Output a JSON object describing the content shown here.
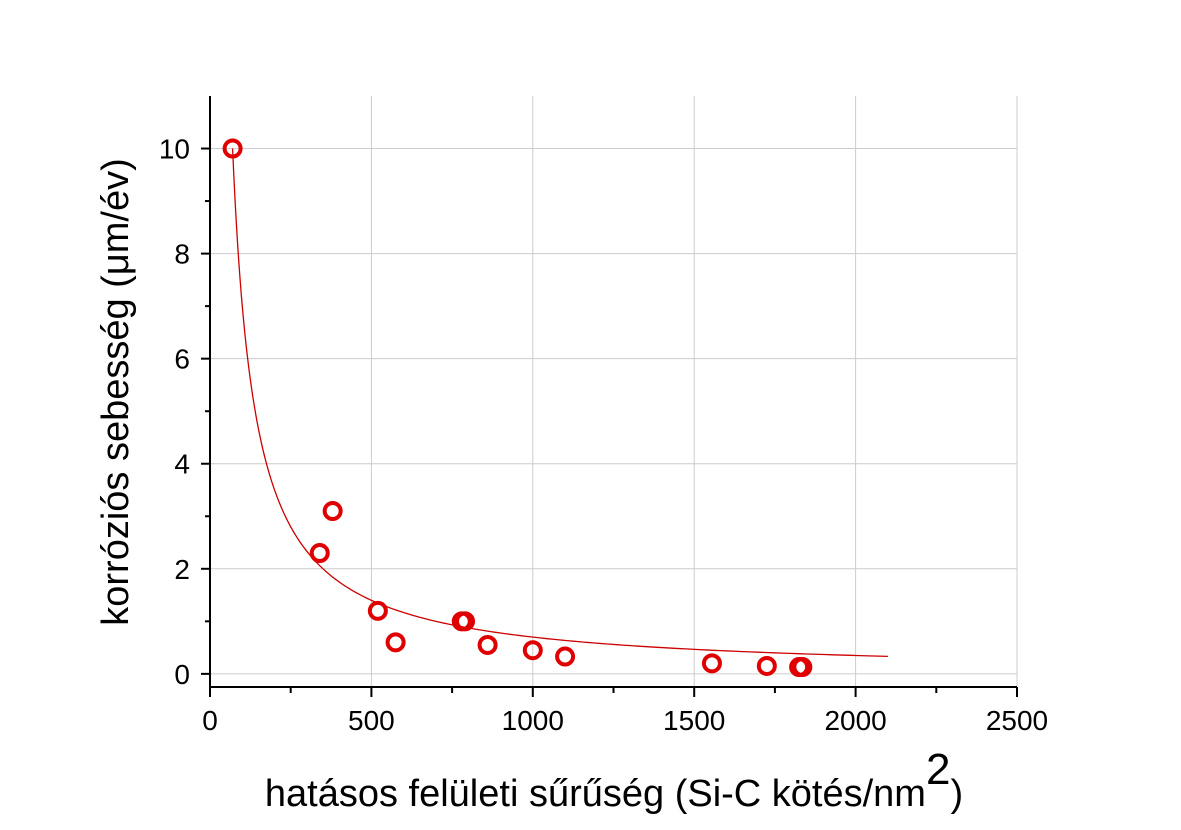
{
  "chart_data": {
    "type": "scatter",
    "xlabel": "hatásos felületi sűrűség (Si-C kötés/nm",
    "xlabel_superscript": "2",
    "xlabel_suffix": ")",
    "ylabel": "korróziós sebesség (μm/év)",
    "xlim": [
      0,
      2500
    ],
    "ylim": [
      -0.25,
      11
    ],
    "x_ticks": [
      0,
      500,
      1000,
      1500,
      2000,
      2500
    ],
    "y_ticks": [
      0,
      2,
      4,
      6,
      8,
      10
    ],
    "grid": true,
    "series": [
      {
        "kind": "points",
        "color": "#e00000",
        "marker": "open-circle",
        "points": [
          {
            "x": 70,
            "y": 10.0
          },
          {
            "x": 340,
            "y": 2.3
          },
          {
            "x": 380,
            "y": 3.1
          },
          {
            "x": 520,
            "y": 1.2
          },
          {
            "x": 575,
            "y": 0.6
          },
          {
            "x": 780,
            "y": 1.0
          },
          {
            "x": 790,
            "y": 1.0
          },
          {
            "x": 860,
            "y": 0.55
          },
          {
            "x": 1000,
            "y": 0.45
          },
          {
            "x": 1100,
            "y": 0.33
          },
          {
            "x": 1555,
            "y": 0.2
          },
          {
            "x": 1725,
            "y": 0.15
          },
          {
            "x": 1825,
            "y": 0.13
          },
          {
            "x": 1835,
            "y": 0.13
          }
        ]
      },
      {
        "kind": "fit",
        "color": "#cc0000",
        "equation": "y = 700 / x",
        "x_range": [
          70,
          2100
        ]
      }
    ]
  }
}
